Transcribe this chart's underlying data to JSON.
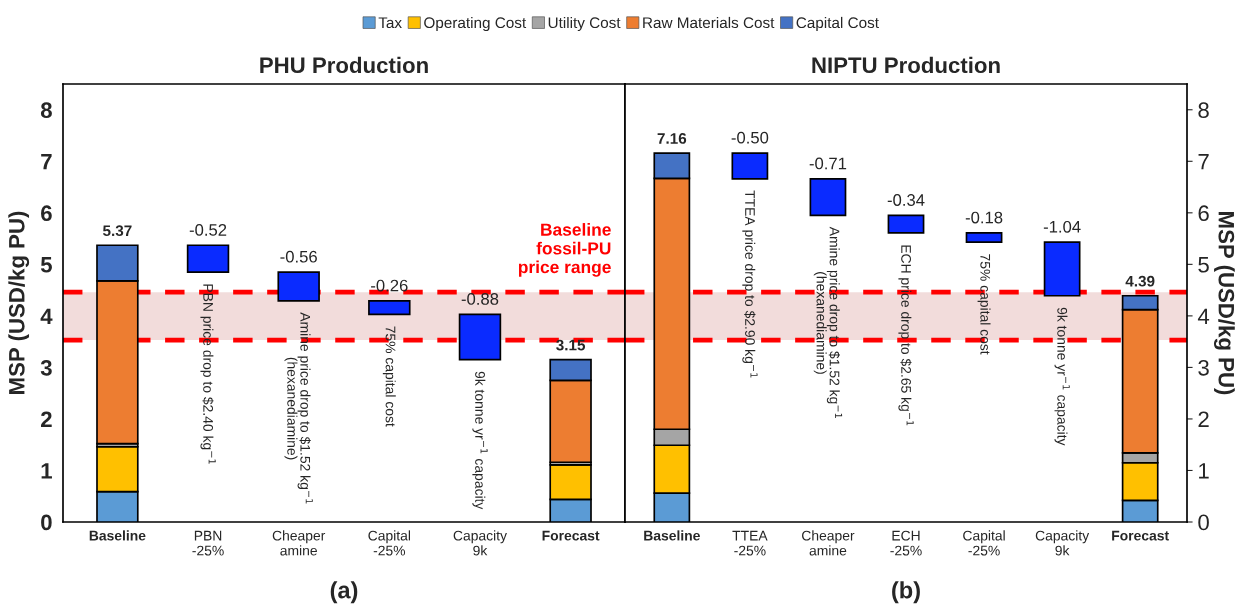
{
  "chart_data": [
    {
      "type": "bar",
      "title": "PHU Production",
      "ylabel": "MSP (USD/kg PU)",
      "stacked": true,
      "legend": "top",
      "grid": false,
      "categories": [
        "Baseline",
        "PBN\n-25%",
        "Cheaper\namine",
        "Capital\n-25%",
        "Capacity\n9k",
        "Forecast"
      ],
      "ylim": [
        0,
        8.5
      ],
      "yticks": [
        0,
        1,
        2,
        3,
        4,
        5,
        6,
        7,
        8
      ],
      "series": [
        {
          "name": "Tax",
          "color": "#5b9bd5",
          "values": [
            0.59,
            null,
            null,
            null,
            null,
            0.44
          ]
        },
        {
          "name": "Operating Cost",
          "color": "#ffc000",
          "values": [
            0.87,
            null,
            null,
            null,
            null,
            0.67
          ]
        },
        {
          "name": "Utility Cost",
          "color": "#a5a5a5",
          "values": [
            0.06,
            null,
            null,
            null,
            null,
            0.05
          ]
        },
        {
          "name": "Raw Materials Cost",
          "color": "#ed7d31",
          "values": [
            3.16,
            null,
            null,
            null,
            null,
            1.59
          ]
        },
        {
          "name": "Capital Cost",
          "color": "#4472c4",
          "values": [
            0.69,
            null,
            null,
            null,
            null,
            0.4
          ]
        },
        {
          "color": "#0a2bff",
          "values": [
            null,
            -0.52,
            -0.56,
            -0.26,
            -0.88,
            null
          ],
          "base": [
            null,
            5.37,
            4.85,
            4.29,
            4.03,
            null
          ],
          "value_labels": [
            null,
            "-0.52",
            "-0.56",
            "-0.26",
            "-0.88",
            null
          ]
        }
      ],
      "totals": [
        "5.37",
        null,
        null,
        null,
        null,
        "3.15"
      ],
      "bands": [
        {
          "axis": "y",
          "from": 3.53,
          "to": 4.46,
          "label": "Baseline\nfossil-PU\nprice range",
          "color": "#f2dcdb"
        }
      ],
      "ref_lines": [
        {
          "axis": "y",
          "value": 4.46,
          "color": "#ff0000",
          "line_style": "dashed"
        },
        {
          "axis": "y",
          "value": 3.53,
          "color": "#ff0000",
          "line_style": "dashed"
        }
      ],
      "annotations": [
        "PBN price drop to $2.40 kg$^{−1}$",
        "Amine price drop to $1.52 kg$^{−1}$\n(hexanediamine)",
        "75% capital cost",
        "9k tonne yr$^{−1}$ capacity",
        "(a)"
      ]
    },
    {
      "type": "bar",
      "title": "NIPTU Production",
      "ylabel": "MSP (USD/kg PU)",
      "stacked": true,
      "grid": false,
      "categories": [
        "Baseline",
        "TTEA\n-25%",
        "Cheaper\namine",
        "ECH\n-25%",
        "Capital\n-25%",
        "Capacity\n9k",
        "Forecast"
      ],
      "ylim": [
        0,
        8.5
      ],
      "yticks": [
        0,
        1,
        2,
        3,
        4,
        5,
        6,
        7,
        8
      ],
      "series": [
        {
          "color": "#5b9bd5",
          "values": [
            0.56,
            null,
            null,
            null,
            null,
            null,
            0.42
          ]
        },
        {
          "color": "#ffc000",
          "values": [
            0.93,
            null,
            null,
            null,
            null,
            null,
            0.73
          ]
        },
        {
          "color": "#a5a5a5",
          "values": [
            0.31,
            null,
            null,
            null,
            null,
            null,
            0.19
          ]
        },
        {
          "color": "#ed7d31",
          "values": [
            4.87,
            null,
            null,
            null,
            null,
            null,
            2.78
          ]
        },
        {
          "color": "#4472c4",
          "values": [
            0.49,
            null,
            null,
            null,
            null,
            null,
            0.27
          ]
        },
        {
          "color": "#0a2bff",
          "values": [
            null,
            -0.5,
            -0.71,
            -0.34,
            -0.18,
            -1.04,
            null
          ],
          "base": [
            null,
            7.16,
            6.66,
            5.95,
            5.61,
            5.43,
            null
          ],
          "value_labels": [
            null,
            "-0.50",
            "-0.71",
            "-0.34",
            "-0.18",
            "-1.04",
            null
          ]
        }
      ],
      "totals": [
        "7.16",
        null,
        null,
        null,
        null,
        null,
        "4.39"
      ],
      "bands": [
        {
          "axis": "y",
          "from": 3.53,
          "to": 4.46,
          "color": "#f2dcdb"
        }
      ],
      "ref_lines": [
        {
          "axis": "y",
          "value": 4.46,
          "color": "#ff0000",
          "line_style": "dashed"
        },
        {
          "axis": "y",
          "value": 3.53,
          "color": "#ff0000",
          "line_style": "dashed"
        }
      ],
      "annotations": [
        "TTEA price drop to $2.90 kg$^{−1}$",
        "Amine price drop to $1.52 kg$^{−1}$\n(hexanediamine)",
        "ECH price drop to $2.65 kg$^{−1}$",
        "75% capital cost",
        "9k tonne yr$^{−1}$ capacity",
        "(b)"
      ]
    }
  ]
}
